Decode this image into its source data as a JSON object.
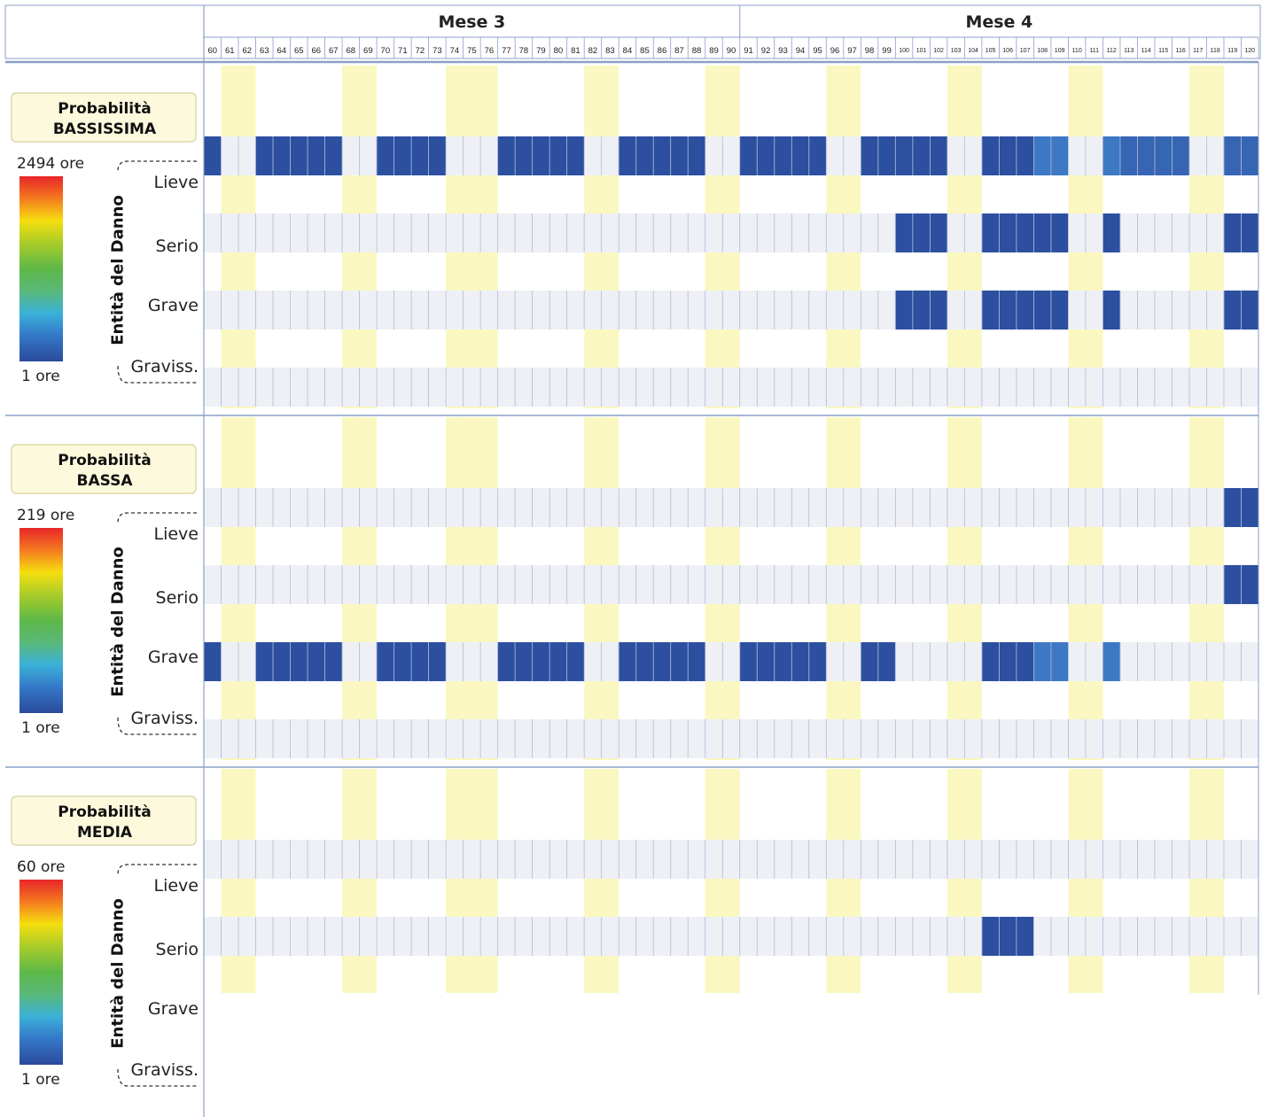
{
  "header": {
    "months": [
      {
        "label": "Mese 3",
        "from_day": 60,
        "to_day": 90
      },
      {
        "label": "Mese 4",
        "from_day": 91,
        "to_day": 120
      }
    ]
  },
  "colors": {
    "weekend": "#faf8c0",
    "row_band": "#eef0f6",
    "grid_line": "#aebcd6",
    "frame": "#8ca0c8",
    "cell_dark": "#2c4fa0",
    "cell_mid": "#3665b4",
    "cell_light": "#3d78c4",
    "prob_box": "#fdf9dc",
    "prob_box_border": "#d8d0a0"
  },
  "chart_data": {
    "type": "heatmap",
    "x_label": "",
    "days": [
      60,
      61,
      62,
      63,
      64,
      65,
      66,
      67,
      68,
      69,
      70,
      71,
      72,
      73,
      74,
      75,
      76,
      77,
      78,
      79,
      80,
      81,
      82,
      83,
      84,
      85,
      86,
      87,
      88,
      89,
      90,
      91,
      92,
      93,
      94,
      95,
      96,
      97,
      98,
      99,
      100,
      101,
      102,
      103,
      104,
      105,
      106,
      107,
      108,
      109,
      110,
      111,
      112,
      113,
      114,
      115,
      116,
      117,
      118,
      119,
      120
    ],
    "weekend_days": [
      61,
      62,
      68,
      69,
      74,
      75,
      76,
      82,
      83,
      89,
      90,
      96,
      97,
      103,
      104,
      110,
      111,
      117,
      118
    ],
    "severity_axis_label": "Entità del Danno",
    "severity_levels": [
      "Lieve",
      "Serio",
      "Grave",
      "Graviss."
    ],
    "unit": "ore",
    "panels": [
      {
        "probability_line1": "Probabilità",
        "probability_line2": "BASSISSIMA",
        "max_label": "2494 ore",
        "min_label": "1 ore",
        "rows": [
          {
            "severity": "Lieve",
            "cells": [
              {
                "from": 60,
                "to": 60,
                "level": "dark"
              },
              {
                "from": 63,
                "to": 67,
                "level": "dark"
              },
              {
                "from": 70,
                "to": 73,
                "level": "dark"
              },
              {
                "from": 77,
                "to": 81,
                "level": "dark"
              },
              {
                "from": 84,
                "to": 88,
                "level": "dark"
              },
              {
                "from": 91,
                "to": 95,
                "level": "dark"
              },
              {
                "from": 98,
                "to": 102,
                "level": "dark"
              },
              {
                "from": 105,
                "to": 107,
                "level": "dark"
              },
              {
                "from": 108,
                "to": 109,
                "level": "light"
              },
              {
                "from": 112,
                "to": 112,
                "level": "light"
              },
              {
                "from": 113,
                "to": 116,
                "level": "mid"
              },
              {
                "from": 119,
                "to": 120,
                "level": "mid"
              }
            ]
          },
          {
            "severity": "Serio",
            "cells": [
              {
                "from": 100,
                "to": 102,
                "level": "dark"
              },
              {
                "from": 105,
                "to": 109,
                "level": "dark"
              },
              {
                "from": 112,
                "to": 112,
                "level": "dark"
              },
              {
                "from": 119,
                "to": 120,
                "level": "dark"
              }
            ]
          },
          {
            "severity": "Grave",
            "cells": [
              {
                "from": 100,
                "to": 102,
                "level": "dark"
              },
              {
                "from": 105,
                "to": 109,
                "level": "dark"
              },
              {
                "from": 112,
                "to": 112,
                "level": "dark"
              },
              {
                "from": 119,
                "to": 120,
                "level": "dark"
              }
            ]
          },
          {
            "severity": "Graviss.",
            "cells": []
          }
        ]
      },
      {
        "probability_line1": "Probabilità",
        "probability_line2": "BASSA",
        "max_label": "219 ore",
        "min_label": "1 ore",
        "rows": [
          {
            "severity": "Lieve",
            "cells": [
              {
                "from": 119,
                "to": 120,
                "level": "dark"
              }
            ]
          },
          {
            "severity": "Serio",
            "cells": [
              {
                "from": 119,
                "to": 120,
                "level": "dark"
              }
            ]
          },
          {
            "severity": "Grave",
            "cells": [
              {
                "from": 60,
                "to": 60,
                "level": "dark"
              },
              {
                "from": 63,
                "to": 67,
                "level": "dark"
              },
              {
                "from": 70,
                "to": 73,
                "level": "dark"
              },
              {
                "from": 77,
                "to": 81,
                "level": "dark"
              },
              {
                "from": 84,
                "to": 88,
                "level": "dark"
              },
              {
                "from": 91,
                "to": 95,
                "level": "dark"
              },
              {
                "from": 98,
                "to": 99,
                "level": "dark"
              },
              {
                "from": 105,
                "to": 107,
                "level": "dark"
              },
              {
                "from": 108,
                "to": 109,
                "level": "light"
              },
              {
                "from": 112,
                "to": 112,
                "level": "light"
              }
            ]
          },
          {
            "severity": "Graviss.",
            "cells": []
          }
        ]
      },
      {
        "probability_line1": "Probabilità",
        "probability_line2": "MEDIA",
        "max_label": "60 ore",
        "min_label": "1 ore",
        "rows": [
          {
            "severity": "Lieve",
            "cells": []
          },
          {
            "severity": "Serio",
            "cells": [
              {
                "from": 105,
                "to": 107,
                "level": "dark"
              }
            ]
          }
        ]
      }
    ]
  }
}
